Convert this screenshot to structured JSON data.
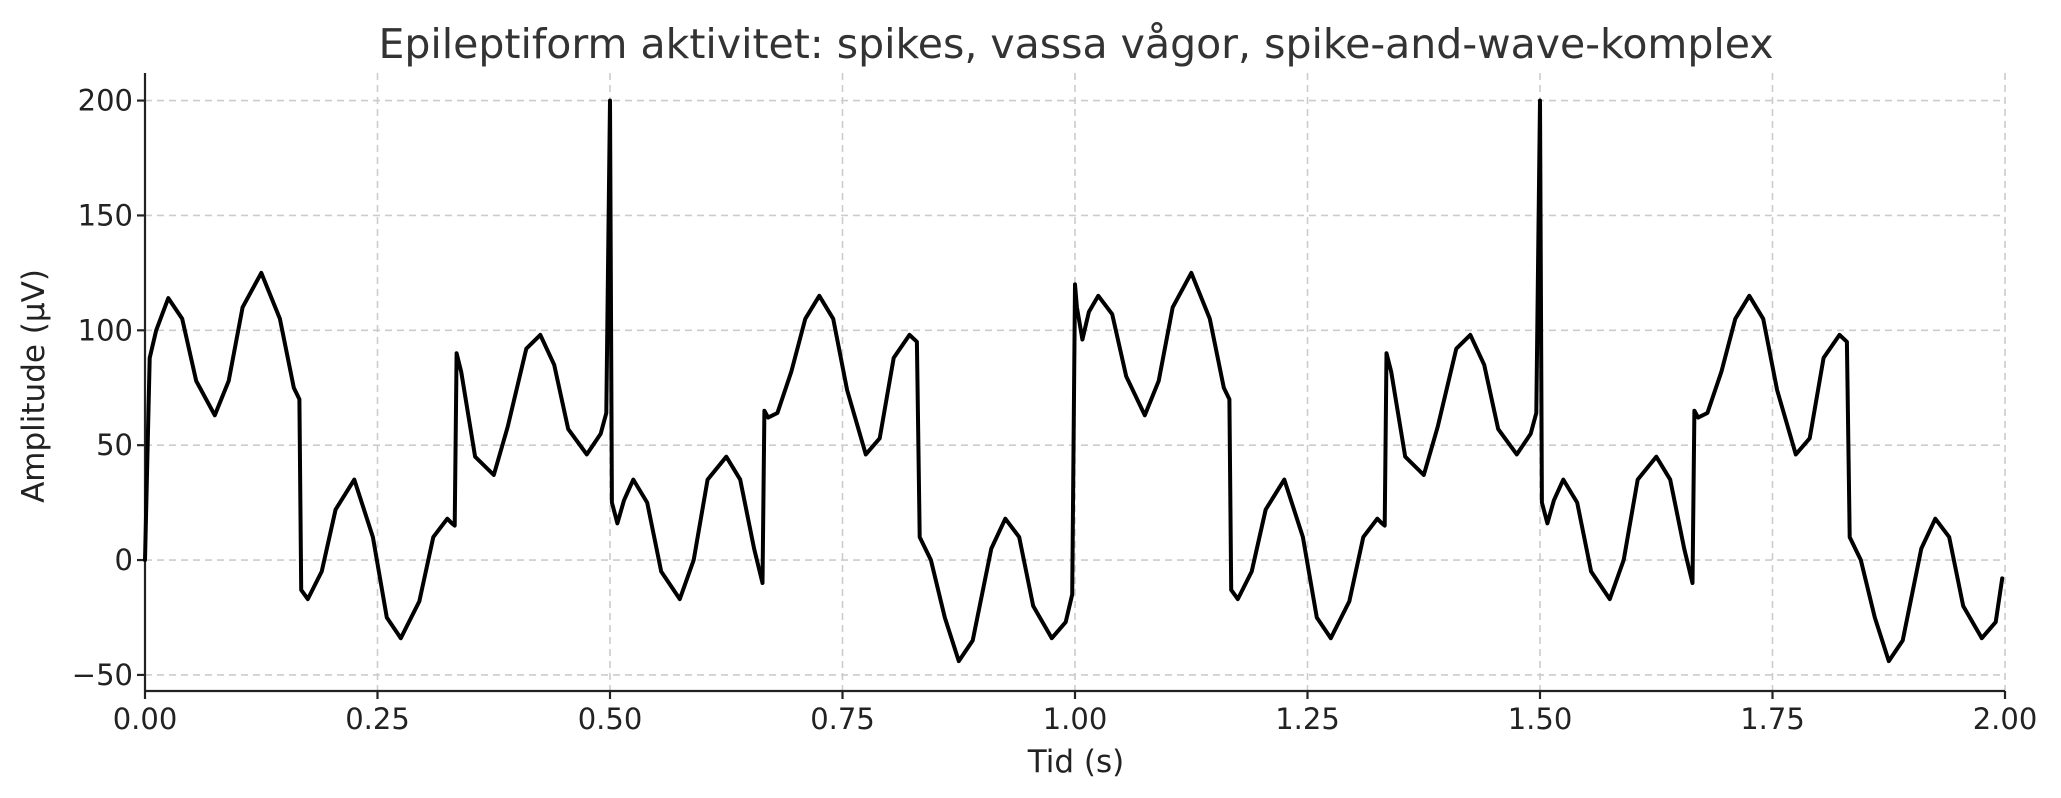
{
  "chart_data": {
    "type": "line",
    "title": "Epileptiform aktivitet: spikes, vassa vågor, spike-and-wave-komplex",
    "xlabel": "Tid (s)",
    "ylabel": "Amplitude (µV)",
    "xlim": [
      0,
      2
    ],
    "ylim": [
      -57,
      212
    ],
    "x_ticks": [
      0,
      0.25,
      0.5,
      0.75,
      1,
      1.25,
      1.5,
      1.75,
      2
    ],
    "x_tick_labels": [
      "0.00",
      "0.25",
      "0.50",
      "0.75",
      "1.00",
      "1.25",
      "1.50",
      "1.75",
      "2.00"
    ],
    "y_ticks": [
      -50,
      0,
      50,
      100,
      150,
      200
    ],
    "y_tick_labels": [
      "−50",
      "0",
      "50",
      "100",
      "150",
      "200"
    ],
    "grid": true,
    "series": [
      {
        "color": "#000000",
        "x": [
          0,
          0.005,
          0.012,
          0.025,
          0.04,
          0.055,
          0.075,
          0.09,
          0.105,
          0.125,
          0.145,
          0.16,
          0.166,
          0.168,
          0.175,
          0.19,
          0.205,
          0.225,
          0.245,
          0.26,
          0.275,
          0.295,
          0.31,
          0.325,
          0.33,
          0.333,
          0.335,
          0.34,
          0.355,
          0.375,
          0.39,
          0.41,
          0.425,
          0.44,
          0.455,
          0.475,
          0.49,
          0.496,
          0.5,
          0.502,
          0.508,
          0.515,
          0.525,
          0.54,
          0.555,
          0.575,
          0.59,
          0.605,
          0.625,
          0.64,
          0.655,
          0.664,
          0.666,
          0.67,
          0.68,
          0.695,
          0.71,
          0.725,
          0.74,
          0.755,
          0.775,
          0.79,
          0.805,
          0.822,
          0.83,
          0.833,
          0.845,
          0.86,
          0.875,
          0.89,
          0.91,
          0.925,
          0.94,
          0.955,
          0.975,
          0.99,
          0.997,
          1.0,
          1.002,
          1.008,
          1.015,
          1.025,
          1.04,
          1.055,
          1.075,
          1.09,
          1.105,
          1.125,
          1.145,
          1.16,
          1.166,
          1.168,
          1.175,
          1.19,
          1.205,
          1.225,
          1.245,
          1.26,
          1.275,
          1.295,
          1.31,
          1.325,
          1.33,
          1.333,
          1.335,
          1.34,
          1.355,
          1.375,
          1.39,
          1.41,
          1.425,
          1.44,
          1.455,
          1.475,
          1.49,
          1.496,
          1.5,
          1.502,
          1.508,
          1.515,
          1.525,
          1.54,
          1.555,
          1.575,
          1.59,
          1.605,
          1.625,
          1.64,
          1.655,
          1.664,
          1.666,
          1.67,
          1.68,
          1.695,
          1.71,
          1.725,
          1.74,
          1.755,
          1.775,
          1.79,
          1.805,
          1.822,
          1.83,
          1.833,
          1.845,
          1.86,
          1.875,
          1.89,
          1.91,
          1.925,
          1.94,
          1.955,
          1.975,
          1.99,
          1.997
        ],
        "y": [
          0,
          88,
          100,
          114,
          105,
          78,
          63,
          78,
          110,
          125,
          105,
          75,
          70,
          -13,
          -17,
          -5,
          22,
          35,
          10,
          -25,
          -34,
          -18,
          10,
          18,
          16,
          15,
          90,
          82,
          45,
          37,
          58,
          92,
          98,
          85,
          57,
          46,
          55,
          64,
          200,
          25,
          16,
          26,
          35,
          25,
          -5,
          -17,
          0,
          35,
          45,
          35,
          5,
          -10,
          65,
          62,
          64,
          82,
          105,
          115,
          105,
          74,
          46,
          53,
          88,
          98,
          95,
          10,
          0,
          -25,
          -44,
          -35,
          5,
          18,
          10,
          -20,
          -34,
          -27,
          -15,
          120,
          110,
          96,
          108,
          115,
          107,
          80,
          63,
          78,
          110,
          125,
          105,
          75,
          70,
          -13,
          -17,
          -5,
          22,
          35,
          10,
          -25,
          -34,
          -18,
          10,
          18,
          16,
          15,
          90,
          82,
          45,
          37,
          58,
          92,
          98,
          85,
          57,
          46,
          55,
          64,
          200,
          25,
          16,
          26,
          35,
          25,
          -5,
          -17,
          0,
          35,
          45,
          35,
          5,
          -10,
          65,
          62,
          64,
          82,
          105,
          115,
          105,
          74,
          46,
          53,
          88,
          98,
          95,
          10,
          0,
          -25,
          -44,
          -35,
          5,
          18,
          10,
          -20,
          -34,
          -27,
          -8
        ]
      }
    ]
  }
}
